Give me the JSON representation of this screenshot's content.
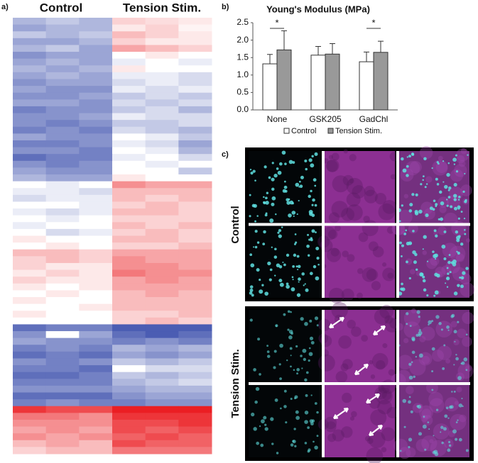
{
  "panel_labels": {
    "a": "a)",
    "b": "b)",
    "c": "c)"
  },
  "heatmap": {
    "group_labels": [
      "Control",
      "Tension Stim."
    ],
    "rows": [
      [
        -0.4,
        -0.3,
        -0.4,
        0.2,
        0.15,
        0.1
      ],
      [
        -0.5,
        -0.4,
        -0.4,
        0.1,
        0.2,
        0.05
      ],
      [
        -0.3,
        -0.4,
        -0.3,
        0.3,
        0.2,
        0.1
      ],
      [
        -0.5,
        -0.5,
        -0.4,
        0.2,
        0.1,
        0.1
      ],
      [
        -0.4,
        -0.3,
        -0.5,
        0.4,
        0.3,
        0.2
      ],
      [
        -0.6,
        -0.5,
        -0.5,
        0.0,
        0.1,
        0.0
      ],
      [
        -0.5,
        -0.4,
        -0.5,
        -0.1,
        0.0,
        -0.1
      ],
      [
        -0.4,
        -0.5,
        -0.4,
        0.1,
        0.0,
        0.0
      ],
      [
        -0.5,
        -0.4,
        -0.5,
        -0.1,
        -0.1,
        -0.2
      ],
      [
        -0.6,
        -0.5,
        -0.5,
        -0.2,
        -0.1,
        -0.2
      ],
      [
        -0.5,
        -0.6,
        -0.6,
        -0.1,
        -0.2,
        -0.1
      ],
      [
        -0.6,
        -0.6,
        -0.5,
        -0.3,
        -0.2,
        -0.3
      ],
      [
        -0.5,
        -0.5,
        -0.6,
        -0.2,
        -0.3,
        -0.2
      ],
      [
        -0.7,
        -0.6,
        -0.6,
        -0.3,
        -0.2,
        -0.4
      ],
      [
        -0.6,
        -0.6,
        -0.5,
        -0.1,
        -0.2,
        -0.2
      ],
      [
        -0.6,
        -0.7,
        -0.6,
        -0.3,
        -0.3,
        -0.2
      ],
      [
        -0.7,
        -0.6,
        -0.7,
        -0.2,
        -0.3,
        -0.4
      ],
      [
        -0.5,
        -0.6,
        -0.6,
        0.0,
        -0.1,
        -0.3
      ],
      [
        -0.7,
        -0.7,
        -0.6,
        -0.1,
        -0.2,
        -0.5
      ],
      [
        -0.6,
        -0.6,
        -0.7,
        0.0,
        -0.1,
        -0.4
      ],
      [
        -0.8,
        -0.7,
        -0.7,
        -0.1,
        0.0,
        -0.2
      ],
      [
        -0.6,
        -0.7,
        -0.6,
        0.0,
        -0.1,
        0.0
      ],
      [
        -0.5,
        -0.6,
        -0.6,
        0.0,
        0.0,
        -0.3
      ],
      [
        -0.4,
        -0.5,
        -0.5,
        0.1,
        0.0,
        0.0
      ],
      [
        0.0,
        -0.1,
        0.0,
        0.5,
        0.4,
        0.4
      ],
      [
        -0.1,
        -0.1,
        -0.2,
        0.3,
        0.3,
        0.3
      ],
      [
        -0.2,
        -0.1,
        -0.1,
        0.3,
        0.2,
        0.3
      ],
      [
        0.0,
        0.0,
        -0.1,
        0.2,
        0.3,
        0.2
      ],
      [
        -0.1,
        -0.2,
        -0.1,
        0.3,
        0.3,
        0.2
      ],
      [
        0.0,
        -0.1,
        0.0,
        0.2,
        0.2,
        0.2
      ],
      [
        -0.1,
        0.0,
        0.0,
        0.3,
        0.2,
        0.3
      ],
      [
        0.0,
        -0.2,
        -0.1,
        0.2,
        0.3,
        0.2
      ],
      [
        0.1,
        0.0,
        0.0,
        0.3,
        0.3,
        0.2
      ],
      [
        0.0,
        0.1,
        0.0,
        0.2,
        0.2,
        0.3
      ],
      [
        0.3,
        0.3,
        0.2,
        0.4,
        0.4,
        0.4
      ],
      [
        0.2,
        0.3,
        0.2,
        0.5,
        0.4,
        0.4
      ],
      [
        0.2,
        0.1,
        0.1,
        0.5,
        0.5,
        0.4
      ],
      [
        0.1,
        0.2,
        0.1,
        0.6,
        0.5,
        0.5
      ],
      [
        0.2,
        0.1,
        0.1,
        0.4,
        0.5,
        0.4
      ],
      [
        0.1,
        0.0,
        0.1,
        0.4,
        0.4,
        0.4
      ],
      [
        0.0,
        0.1,
        0.0,
        0.3,
        0.4,
        0.3
      ],
      [
        0.1,
        0.0,
        0.0,
        0.3,
        0.3,
        0.3
      ],
      [
        0.0,
        0.0,
        0.1,
        0.3,
        0.3,
        0.3
      ],
      [
        0.1,
        0.0,
        0.0,
        0.2,
        0.2,
        0.3
      ],
      [
        0.0,
        0.0,
        0.0,
        0.2,
        0.3,
        0.2
      ],
      [
        -0.8,
        -0.7,
        -0.7,
        -0.9,
        -0.9,
        -0.9
      ],
      [
        -0.6,
        0.0,
        -0.5,
        -0.8,
        -0.9,
        -0.8
      ],
      [
        -0.5,
        -0.6,
        -0.6,
        -0.7,
        -0.6,
        -0.7
      ],
      [
        -0.7,
        -0.6,
        -0.7,
        -0.4,
        -0.5,
        -0.4
      ],
      [
        -0.8,
        -0.7,
        -0.8,
        -0.5,
        -0.6,
        -0.5
      ],
      [
        -0.6,
        -0.7,
        -0.6,
        -0.3,
        -0.4,
        -0.3
      ],
      [
        -0.7,
        -0.7,
        -0.8,
        0.0,
        -0.2,
        -0.2
      ],
      [
        -0.8,
        -0.8,
        -0.7,
        -0.3,
        -0.4,
        -0.3
      ],
      [
        -0.7,
        -0.7,
        -0.7,
        -0.4,
        -0.3,
        -0.2
      ],
      [
        -0.6,
        -0.6,
        -0.6,
        -0.5,
        -0.4,
        -0.4
      ],
      [
        -0.8,
        -0.8,
        -0.8,
        -0.6,
        -0.5,
        -0.5
      ],
      [
        -0.7,
        -0.6,
        -0.7,
        -0.7,
        -0.6,
        -0.6
      ],
      [
        0.9,
        0.8,
        0.8,
        1.0,
        1.0,
        1.0
      ],
      [
        0.6,
        0.6,
        0.5,
        0.9,
        0.9,
        0.9
      ],
      [
        0.5,
        0.5,
        0.5,
        0.8,
        0.8,
        0.9
      ],
      [
        0.4,
        0.5,
        0.4,
        0.8,
        0.7,
        0.8
      ],
      [
        0.5,
        0.4,
        0.5,
        0.7,
        0.8,
        0.7
      ],
      [
        0.3,
        0.4,
        0.3,
        0.8,
        0.7,
        0.7
      ],
      [
        0.2,
        0.3,
        0.3,
        0.6,
        0.6,
        0.6
      ]
    ]
  },
  "chart_data": {
    "type": "bar",
    "title": "Young's Modulus (MPa)",
    "categories": [
      "None",
      "GSK205",
      "GadChl"
    ],
    "series": [
      {
        "name": "Control",
        "color": "#ffffff",
        "values": [
          1.32,
          1.57,
          1.38
        ],
        "errors": [
          0.27,
          0.25,
          0.28
        ]
      },
      {
        "name": "Tension Stim.",
        "color": "#999999",
        "values": [
          1.72,
          1.6,
          1.65
        ],
        "errors": [
          0.55,
          0.3,
          0.32
        ]
      }
    ],
    "ylim": [
      0,
      2.5
    ],
    "yticks": [
      {
        "value": 0,
        "label": "0.0"
      },
      {
        "value": 0.5,
        "label": "0.5"
      },
      {
        "value": 1,
        "label": "1.0"
      },
      {
        "value": 1.5,
        "label": "1.5"
      },
      {
        "value": 2,
        "label": "2.0"
      },
      {
        "value": 2.5,
        "label": "2.5"
      }
    ],
    "annotations": [
      "*",
      "*"
    ]
  },
  "images": {
    "row_labels": [
      "Control",
      "Tension Stim."
    ]
  }
}
